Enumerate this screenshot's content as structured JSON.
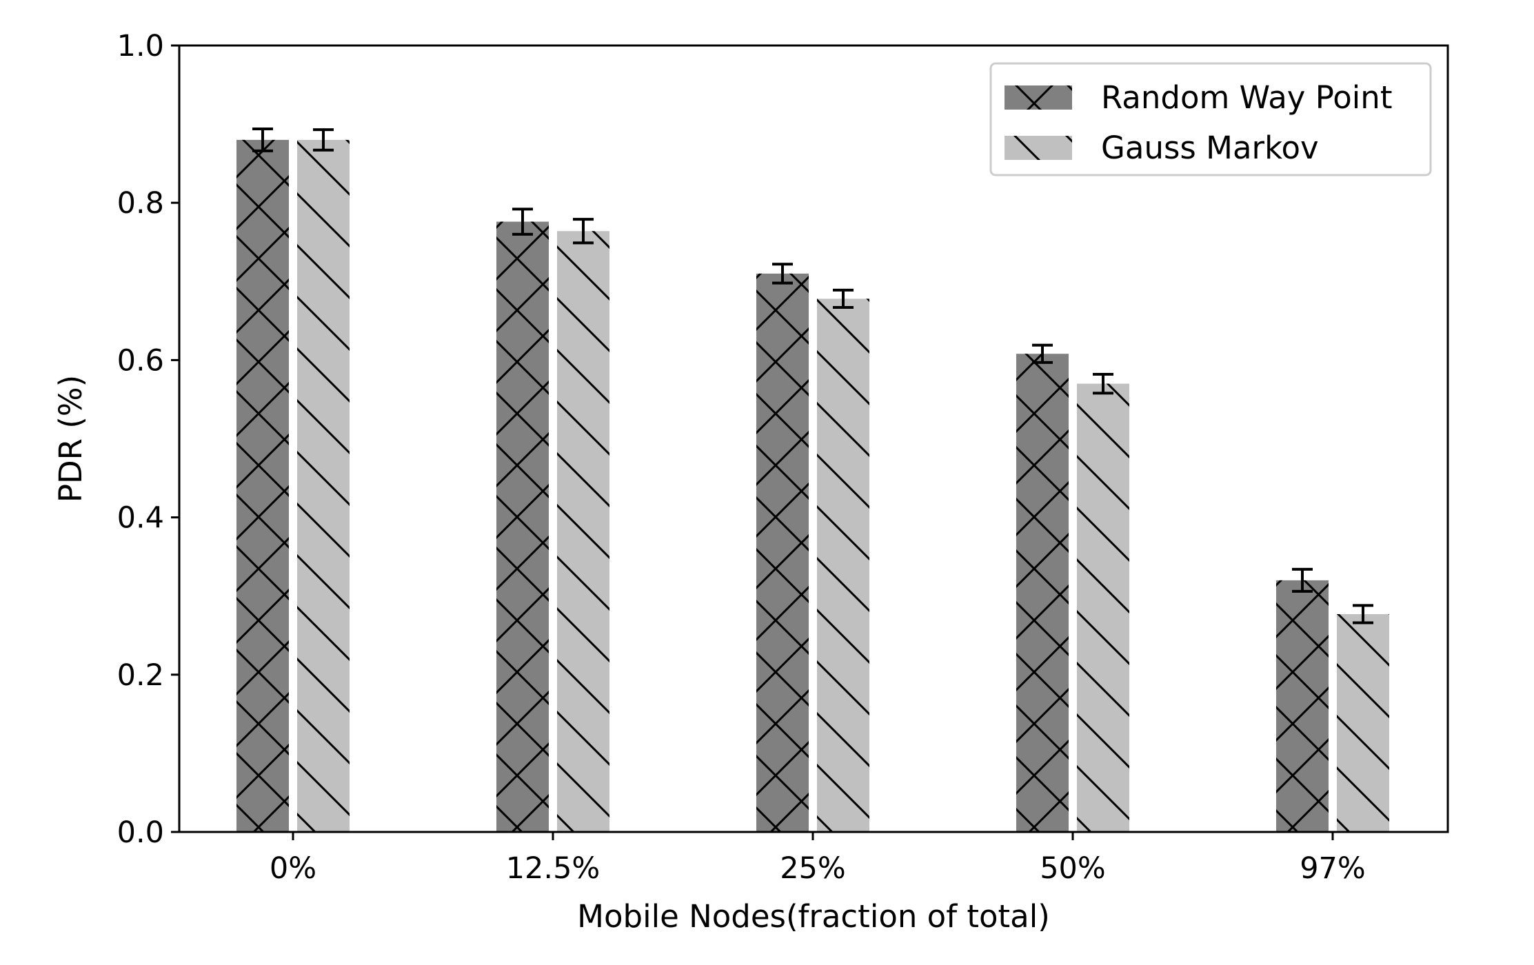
{
  "chart_data": {
    "type": "bar",
    "categories": [
      "0%",
      "12.5%",
      "25%",
      "50%",
      "97%"
    ],
    "series": [
      {
        "name": "Random Way Point",
        "values": [
          0.88,
          0.776,
          0.71,
          0.608,
          0.32
        ],
        "errors": [
          0.014,
          0.016,
          0.012,
          0.011,
          0.014
        ],
        "color": "#808080",
        "hatch": "crosshatch"
      },
      {
        "name": "Gauss Markov",
        "values": [
          0.88,
          0.764,
          0.678,
          0.57,
          0.277
        ],
        "errors": [
          0.013,
          0.015,
          0.011,
          0.012,
          0.011
        ],
        "color": "#c0c0c0",
        "hatch": "backslash"
      }
    ],
    "xlabel": "Mobile Nodes(fraction of total)",
    "ylabel": "PDR (%)",
    "ylim": [
      0,
      1.0
    ],
    "yticks": [
      0.0,
      0.2,
      0.4,
      0.6,
      0.8,
      1.0
    ],
    "ytick_labels": [
      "0.0",
      "0.2",
      "0.4",
      "0.6",
      "0.8",
      "1.0"
    ],
    "grid": false,
    "legend_position": "top-right"
  }
}
